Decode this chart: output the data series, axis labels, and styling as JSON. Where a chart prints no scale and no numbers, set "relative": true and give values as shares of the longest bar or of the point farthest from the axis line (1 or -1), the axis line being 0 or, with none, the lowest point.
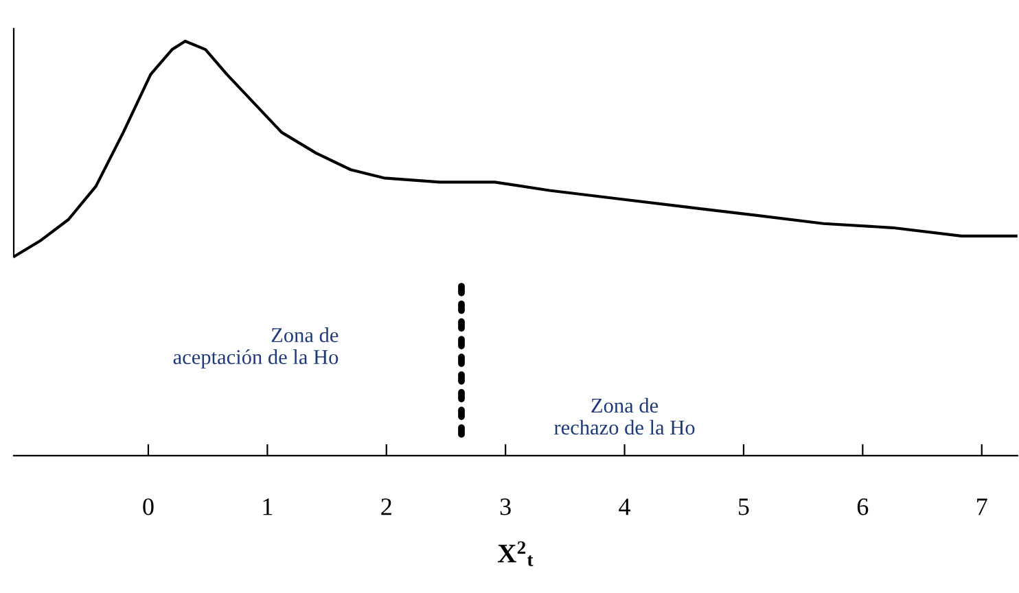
{
  "chart_data": {
    "type": "line",
    "relative": true,
    "xlabel": "X$^{2}$$_{t}$",
    "xlim": [
      -1.13,
      7.3
    ],
    "xticks": [
      0,
      1,
      2,
      3,
      4,
      5,
      6,
      7
    ],
    "series": [
      {
        "color": "#000000",
        "x": [
          -1.13,
          -0.9,
          -0.67,
          -0.44,
          -0.21,
          0.02,
          0.2,
          0.31,
          0.48,
          0.66,
          0.89,
          1.12,
          1.41,
          1.7,
          1.98,
          2.45,
          2.91,
          3.37,
          3.94,
          4.52,
          5.1,
          5.67,
          6.25,
          6.83,
          7.17,
          7.29
        ],
        "values": [
          0.48,
          0.52,
          0.57,
          0.65,
          0.78,
          0.92,
          0.98,
          1,
          0.98,
          0.92,
          0.85,
          0.78,
          0.73,
          0.69,
          0.67,
          0.66,
          0.66,
          0.64,
          0.62,
          0.6,
          0.58,
          0.56,
          0.55,
          0.53,
          0.53,
          0.53
        ]
      }
    ],
    "ref_lines": [
      {
        "axis": "x",
        "value": 2.63,
        "color": "#000000",
        "line_style": "dotted"
      }
    ],
    "annotations": [
      "Zona de\naceptación de la Ho",
      "Zona de\nrechazo de la Ho"
    ],
    "grid": false,
    "legend": false,
    "marker": "none",
    "line_style": "solid"
  }
}
